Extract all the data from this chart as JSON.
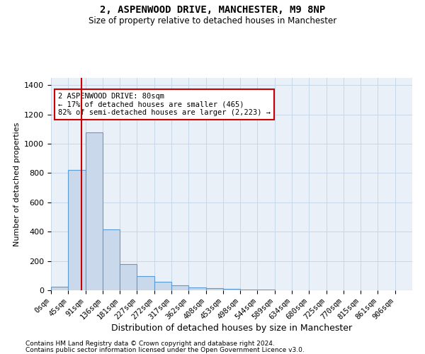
{
  "title": "2, ASPENWOOD DRIVE, MANCHESTER, M9 8NP",
  "subtitle": "Size of property relative to detached houses in Manchester",
  "xlabel": "Distribution of detached houses by size in Manchester",
  "ylabel": "Number of detached properties",
  "bar_labels": [
    "0sqm",
    "45sqm",
    "91sqm",
    "136sqm",
    "181sqm",
    "227sqm",
    "272sqm",
    "317sqm",
    "362sqm",
    "408sqm",
    "453sqm",
    "498sqm",
    "544sqm",
    "589sqm",
    "634sqm",
    "680sqm",
    "725sqm",
    "770sqm",
    "815sqm",
    "861sqm",
    "906sqm"
  ],
  "bar_values": [
    25,
    820,
    1080,
    415,
    180,
    95,
    58,
    32,
    20,
    14,
    8,
    5,
    3,
    2,
    1,
    1,
    1,
    0,
    0,
    0,
    0
  ],
  "bar_color": "#c9d9eb",
  "bar_edge_color": "#5b9bd5",
  "grid_color": "#c8d8e8",
  "bg_color": "#eaf0f8",
  "property_line_x": 80,
  "property_line_color": "#cc0000",
  "annotation_text": "2 ASPENWOOD DRIVE: 80sqm\n← 17% of detached houses are smaller (465)\n82% of semi-detached houses are larger (2,223) →",
  "annotation_box_color": "#cc0000",
  "ylim": [
    0,
    1450
  ],
  "yticks": [
    0,
    200,
    400,
    600,
    800,
    1000,
    1200,
    1400
  ],
  "footnote1": "Contains HM Land Registry data © Crown copyright and database right 2024.",
  "footnote2": "Contains public sector information licensed under the Open Government Licence v3.0.",
  "bin_width": 45,
  "n_bars": 21
}
